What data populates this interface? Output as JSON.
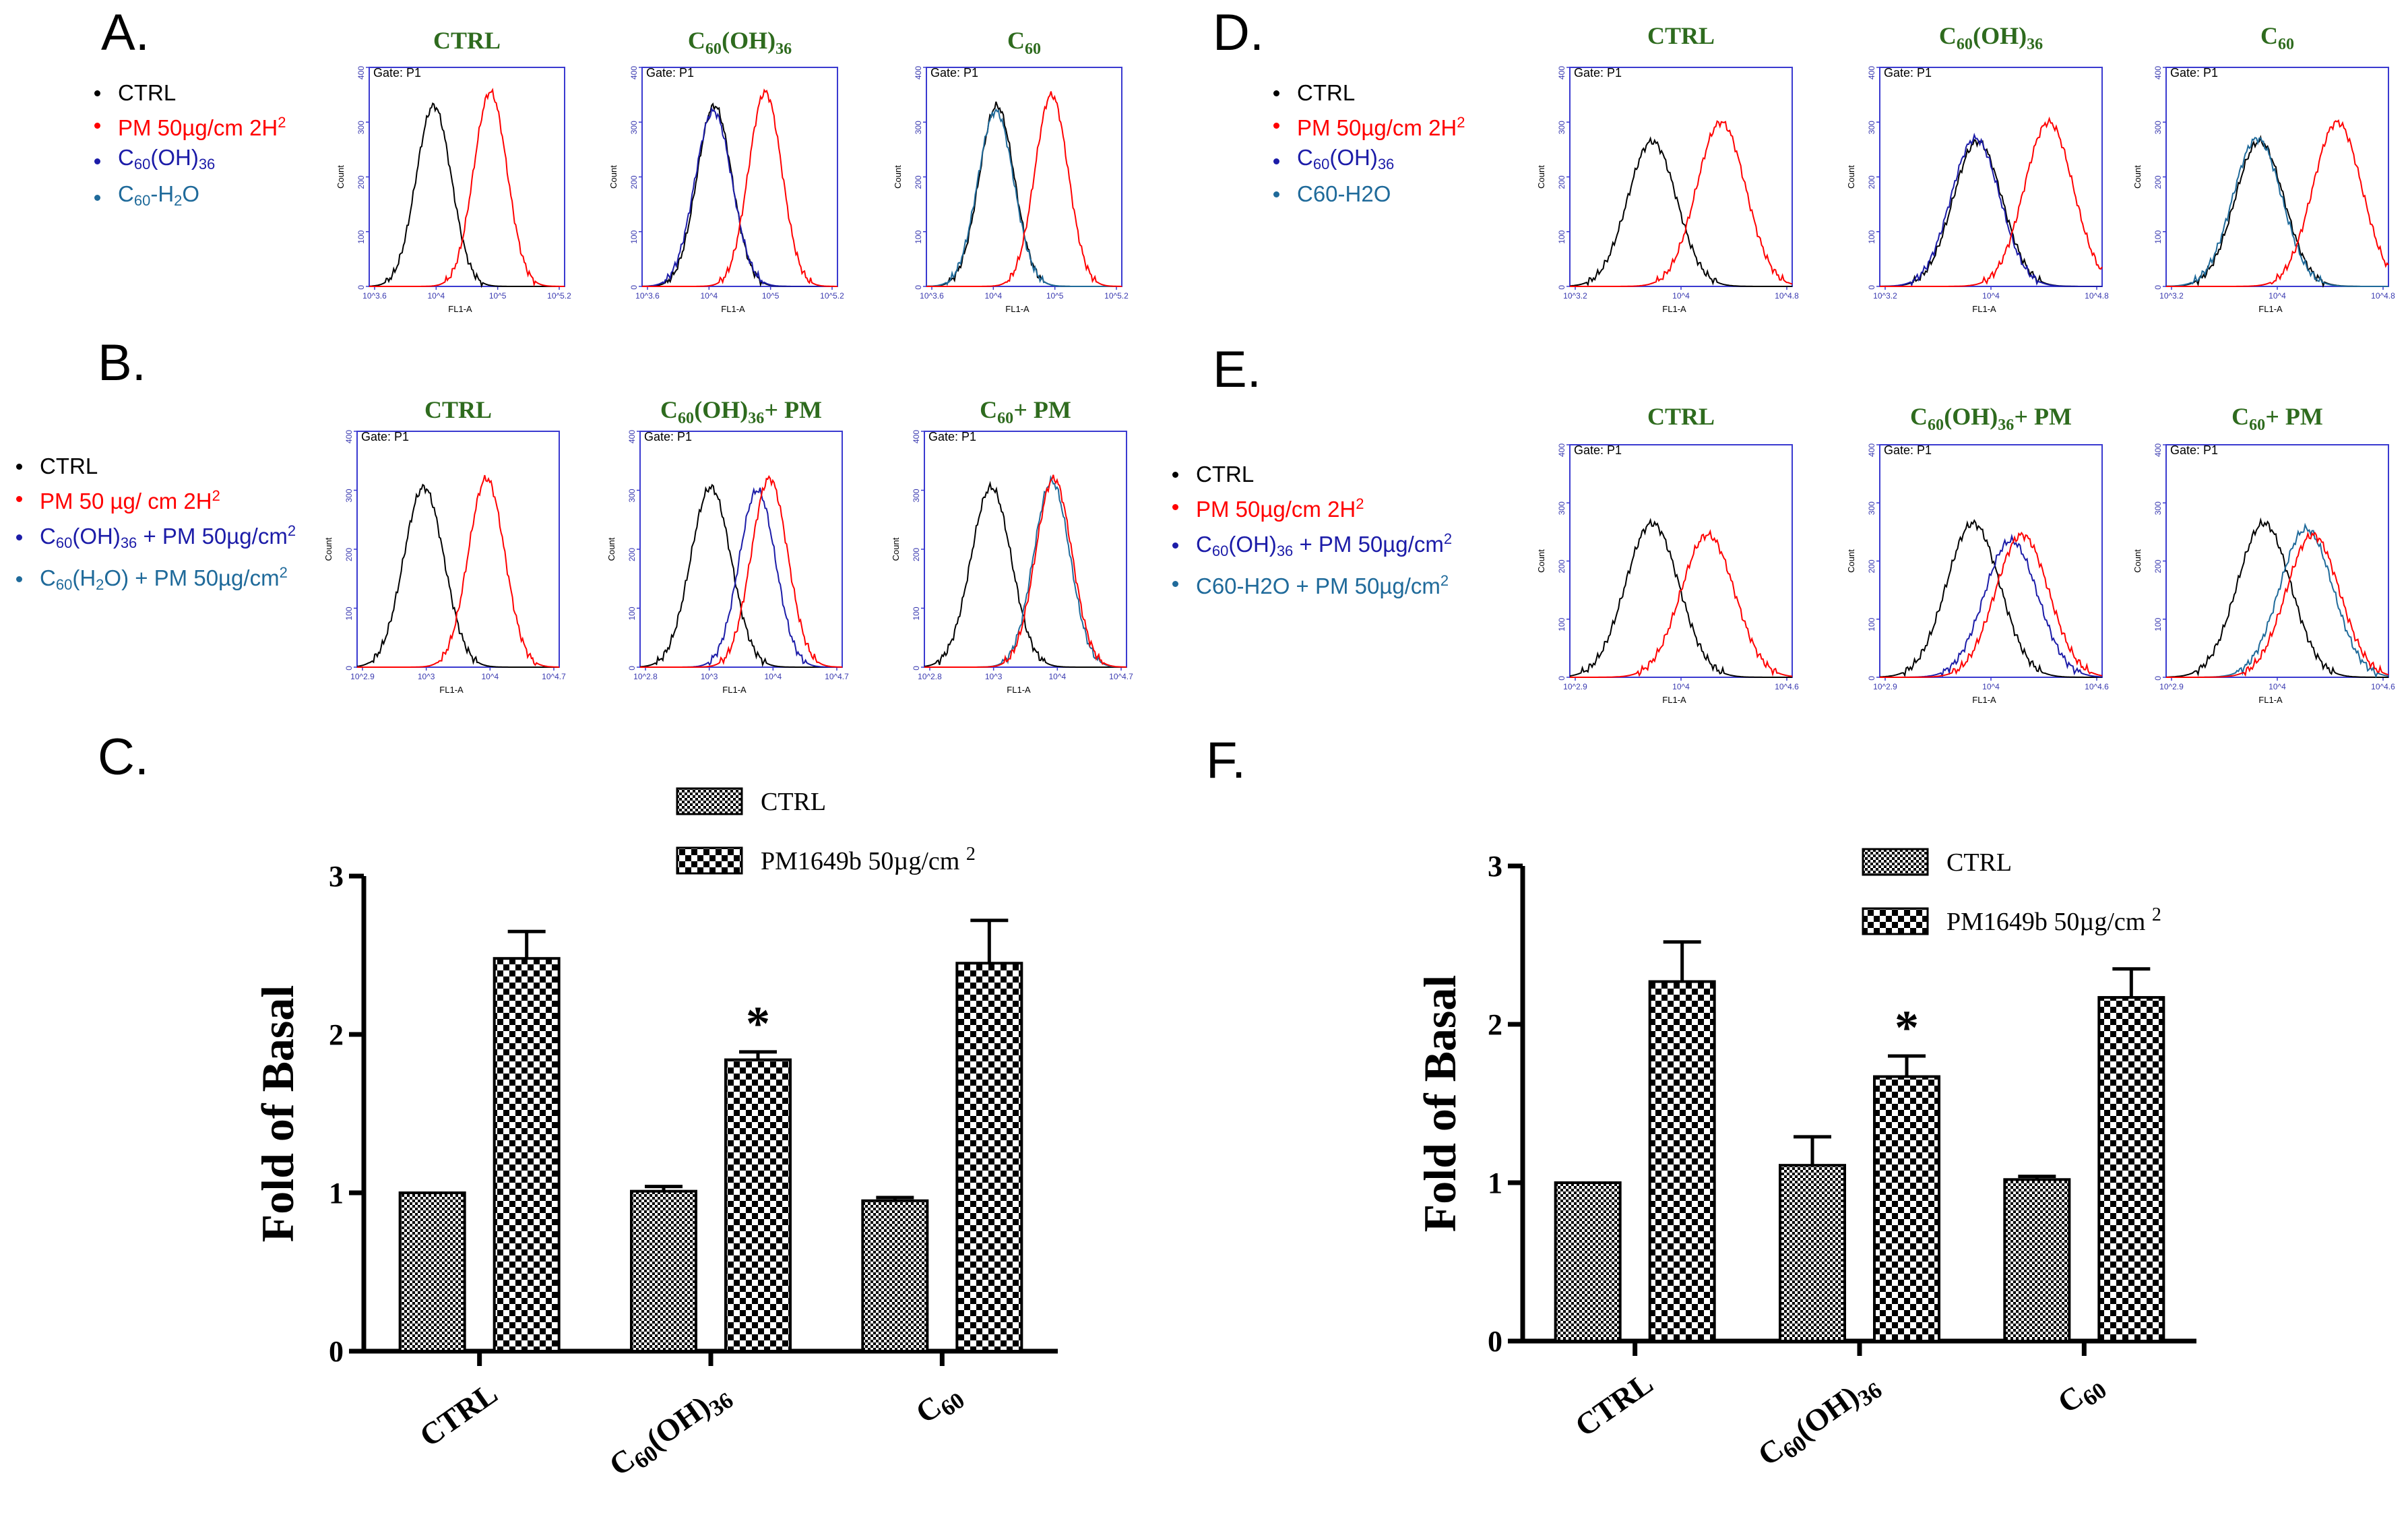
{
  "panels": {
    "A": {
      "letter": "A."
    },
    "B": {
      "letter": "B."
    },
    "C": {
      "letter": "C."
    },
    "D": {
      "letter": "D."
    },
    "E": {
      "letter": "E."
    },
    "F": {
      "letter": "F."
    }
  },
  "legends": {
    "A": {
      "items": [
        {
          "color": "#000000",
          "base": "CTRL",
          "sub": "",
          "rest": "",
          "sup": "",
          "tail": ""
        },
        {
          "color": "#ff0000",
          "base": "PM 50µg/cm",
          "sub": "",
          "rest": "",
          "sup": "2",
          "tail": " 2H"
        },
        {
          "color": "#1c1ca8",
          "base": "C",
          "sub": "60",
          "rest": "(OH)",
          "sup": "",
          "tail": "",
          "sub2": "36"
        },
        {
          "color": "#1f6a9a",
          "base": "C",
          "sub": "60",
          "rest": "-H",
          "sup": "",
          "tail": "O",
          "sub2": "2"
        }
      ]
    },
    "B": {
      "items": [
        {
          "color": "#000000",
          "base": "CTRL",
          "sub": "",
          "rest": "",
          "sup": "",
          "tail": ""
        },
        {
          "color": "#ff0000",
          "base": "PM 50 µg/ cm",
          "sub": "",
          "rest": "",
          "sup": "2",
          "tail": " 2H"
        },
        {
          "color": "#1c1ca8",
          "base": "C",
          "sub": "60",
          "rest": "(OH)",
          "sub2": "36",
          "tail": " + PM 50µg/cm",
          "sup": "2"
        },
        {
          "color": "#1f6a9a",
          "base": "C",
          "sub": "60",
          "rest": "(H",
          "sub2": "2",
          "tail": "O) + PM 50µg/cm",
          "sup": "2"
        }
      ]
    },
    "D": {
      "items": [
        {
          "color": "#000000",
          "base": "CTRL",
          "sub": "",
          "rest": "",
          "sup": "",
          "tail": ""
        },
        {
          "color": "#ff0000",
          "base": "PM 50µg/cm",
          "sub": "",
          "rest": "",
          "sup": "2",
          "tail": " 2H"
        },
        {
          "color": "#1c1ca8",
          "base": "C",
          "sub": "60",
          "rest": "(OH)",
          "sub2": "36",
          "tail": "",
          "sup": ""
        },
        {
          "color": "#1f6a9a",
          "base": "C60-H2O",
          "sub": "",
          "rest": "",
          "sup": "",
          "tail": ""
        }
      ]
    },
    "E": {
      "items": [
        {
          "color": "#000000",
          "base": "CTRL",
          "sub": "",
          "rest": "",
          "sup": "",
          "tail": ""
        },
        {
          "color": "#ff0000",
          "base": "PM 50µg/cm",
          "sub": "",
          "rest": "",
          "sup": "2",
          "tail": " 2H"
        },
        {
          "color": "#1c1ca8",
          "base": "C",
          "sub": "60",
          "rest": "(OH)",
          "sub2": "36",
          "tail": "  + PM 50µg/cm",
          "sup": "2"
        },
        {
          "color": "#1f6a9a",
          "base": "C60-H2O + PM 50µg/cm",
          "sub": "",
          "rest": "",
          "sup": "2",
          "tail": ""
        }
      ]
    }
  },
  "histograms": {
    "gate_label": "Gate: P1",
    "y_axis_label": "Count",
    "x_axis_label": "FL1-A",
    "rows": [
      {
        "id": "A",
        "titles": [
          "CTRL",
          "C60(OH)36",
          "C60"
        ],
        "ymax": 400,
        "yticks": [
          0,
          100,
          200,
          300,
          400
        ],
        "xticks": [
          [
            "10^3.6",
            "10^4",
            "10^5",
            "10^5.2"
          ],
          [
            "10^3.6",
            "10^4",
            "10^5",
            "10^5.2"
          ],
          [
            "10^3.6",
            "10^4",
            "10^5",
            "10^5.2"
          ]
        ],
        "curves": [
          [
            {
              "color": "#000000",
              "center": 0.33,
              "width": 0.09,
              "peak": 330
            },
            {
              "color": "#ff0000",
              "center": 0.62,
              "width": 0.085,
              "peak": 355
            }
          ],
          [
            {
              "color": "#000000",
              "center": 0.37,
              "width": 0.09,
              "peak": 330
            },
            {
              "color": "#1c1ca8",
              "center": 0.365,
              "width": 0.095,
              "peak": 320
            },
            {
              "color": "#ff0000",
              "center": 0.63,
              "width": 0.085,
              "peak": 355
            }
          ],
          [
            {
              "color": "#000000",
              "center": 0.36,
              "width": 0.09,
              "peak": 330
            },
            {
              "color": "#1f6a9a",
              "center": 0.355,
              "width": 0.092,
              "peak": 320
            },
            {
              "color": "#ff0000",
              "center": 0.64,
              "width": 0.085,
              "peak": 350
            }
          ]
        ]
      },
      {
        "id": "B",
        "titles": [
          "CTRL",
          "C60(OH)36 + PM",
          "C60 + PM"
        ],
        "ymax": 400,
        "yticks": [
          0,
          100,
          200,
          300,
          400
        ],
        "xticks": [
          [
            "10^2.9",
            "10^3",
            "10^4",
            "10^4.7"
          ],
          [
            "10^2.8",
            "10^3",
            "10^4",
            "10^4.7"
          ],
          [
            "10^2.8",
            "10^3",
            "10^4",
            "10^4.7"
          ]
        ],
        "curves": [
          [
            {
              "color": "#000000",
              "center": 0.33,
              "width": 0.1,
              "peak": 305
            },
            {
              "color": "#ff0000",
              "center": 0.64,
              "width": 0.09,
              "peak": 320
            }
          ],
          [
            {
              "color": "#000000",
              "center": 0.35,
              "width": 0.1,
              "peak": 305
            },
            {
              "color": "#1c1ca8",
              "center": 0.58,
              "width": 0.09,
              "peak": 300
            },
            {
              "color": "#ff0000",
              "center": 0.64,
              "width": 0.09,
              "peak": 320
            }
          ],
          [
            {
              "color": "#000000",
              "center": 0.33,
              "width": 0.1,
              "peak": 305
            },
            {
              "color": "#1f6a9a",
              "center": 0.63,
              "width": 0.09,
              "peak": 315
            },
            {
              "color": "#ff0000",
              "center": 0.64,
              "width": 0.09,
              "peak": 320
            }
          ]
        ]
      },
      {
        "id": "D",
        "titles": [
          "CTRL",
          "C60(OH)36",
          "C60"
        ],
        "ymax": 400,
        "yticks": [
          0,
          100,
          200,
          300,
          400
        ],
        "xticks": [
          [
            "10^3.2",
            "10^4",
            "10^4.8"
          ],
          [
            "10^3.2",
            "10^4",
            "10^4.8"
          ],
          [
            "10^3.2",
            "10^4",
            "10^4.8"
          ]
        ],
        "curves": [
          [
            {
              "color": "#000000",
              "center": 0.37,
              "width": 0.11,
              "peak": 265
            },
            {
              "color": "#ff0000",
              "center": 0.68,
              "width": 0.11,
              "peak": 300
            }
          ],
          [
            {
              "color": "#000000",
              "center": 0.44,
              "width": 0.11,
              "peak": 265
            },
            {
              "color": "#1c1ca8",
              "center": 0.43,
              "width": 0.11,
              "peak": 270
            },
            {
              "color": "#ff0000",
              "center": 0.76,
              "width": 0.11,
              "peak": 300
            }
          ],
          [
            {
              "color": "#000000",
              "center": 0.42,
              "width": 0.11,
              "peak": 265
            },
            {
              "color": "#1f6a9a",
              "center": 0.41,
              "width": 0.11,
              "peak": 270
            },
            {
              "color": "#ff0000",
              "center": 0.77,
              "width": 0.11,
              "peak": 300
            }
          ]
        ]
      },
      {
        "id": "E",
        "titles": [
          "CTRL",
          "C60(OH)36 + PM",
          "C60 + PM"
        ],
        "ymax": 400,
        "yticks": [
          0,
          100,
          200,
          300,
          400
        ],
        "xticks": [
          [
            "10^2.9",
            "10^4",
            "10^4.6"
          ],
          [
            "10^2.9",
            "10^4",
            "10^4.6"
          ],
          [
            "10^2.9",
            "10^4",
            "10^4.6"
          ]
        ],
        "curves": [
          [
            {
              "color": "#000000",
              "center": 0.37,
              "width": 0.12,
              "peak": 265
            },
            {
              "color": "#ff0000",
              "center": 0.62,
              "width": 0.12,
              "peak": 245
            }
          ],
          [
            {
              "color": "#000000",
              "center": 0.42,
              "width": 0.12,
              "peak": 265
            },
            {
              "color": "#1c1ca8",
              "center": 0.59,
              "width": 0.12,
              "peak": 235
            },
            {
              "color": "#ff0000",
              "center": 0.64,
              "width": 0.12,
              "peak": 245
            }
          ],
          [
            {
              "color": "#000000",
              "center": 0.44,
              "width": 0.12,
              "peak": 265
            },
            {
              "color": "#1f6a9a",
              "center": 0.63,
              "width": 0.12,
              "peak": 255
            },
            {
              "color": "#ff0000",
              "center": 0.66,
              "width": 0.12,
              "peak": 245
            }
          ]
        ]
      }
    ]
  },
  "chart_data": [
    {
      "panel": "C",
      "type": "bar",
      "ylabel": "Fold of Basal",
      "xlabel": "",
      "ylim": [
        0,
        3
      ],
      "yticks": [
        "0",
        "1",
        "2",
        "3"
      ],
      "categories": [
        "CTRL",
        "C60(OH)36",
        "C60"
      ],
      "series": [
        {
          "name": "CTRL",
          "values": [
            1.0,
            1.01,
            0.95
          ],
          "errors": [
            0.0,
            0.03,
            0.02
          ]
        },
        {
          "name": "PM1649b 50µg/cm 2",
          "values": [
            2.48,
            1.84,
            2.45
          ],
          "errors": [
            0.17,
            0.05,
            0.27
          ]
        }
      ],
      "annotations": [
        {
          "category": "C60(OH)36",
          "series": 1,
          "text": "*"
        }
      ],
      "legend_position": "top-right"
    },
    {
      "panel": "F",
      "type": "bar",
      "ylabel": "Fold of Basal",
      "xlabel": "",
      "ylim": [
        0,
        3
      ],
      "yticks": [
        "0",
        "1",
        "2",
        "3"
      ],
      "categories": [
        "CTRL",
        "C60(OH)36",
        "C60"
      ],
      "series": [
        {
          "name": "CTRL",
          "values": [
            1.0,
            1.11,
            1.02
          ],
          "errors": [
            0.0,
            0.18,
            0.02
          ]
        },
        {
          "name": "PM1649b 50µg/cm 2",
          "values": [
            2.27,
            1.67,
            2.17
          ],
          "errors": [
            0.25,
            0.13,
            0.18
          ]
        }
      ],
      "annotations": [
        {
          "category": "C60(OH)36",
          "series": 1,
          "text": "*"
        }
      ],
      "legend_position": "top-right"
    }
  ]
}
